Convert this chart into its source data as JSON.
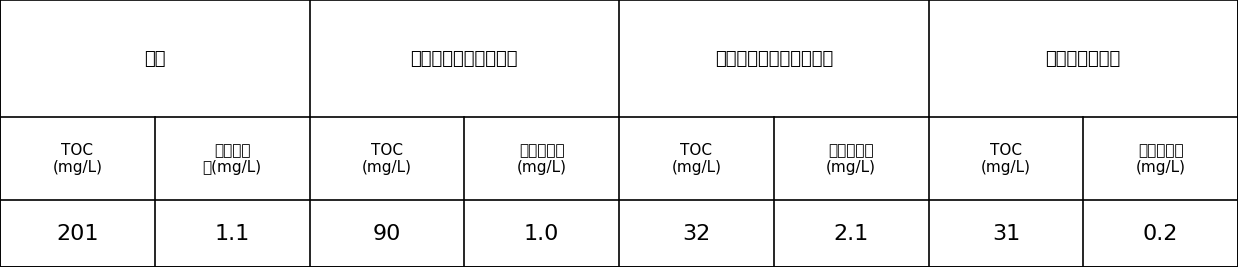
{
  "header_row1": [
    "原料",
    "通过微晶过滤子系统后",
    "通过活性炭过滤子系统后",
    "超滤器子系统后"
  ],
  "header_row1_spans": [
    2,
    2,
    2,
    2
  ],
  "header_row2_col1": "TOC\n(mg/L)",
  "header_row2_col2": "固体悬浮\n物(mg/L)",
  "header_row2_col3": "TOC\n(mg/L)",
  "header_row2_col4": "固体悬浮物\n(mg/L)",
  "header_row2_col5": "TOC\n(mg/L)",
  "header_row2_col6": "固体悬浮物\n(mg/L)",
  "header_row2_col7": "TOC\n(mg/L)",
  "header_row2_col8": "固体悬浮物\n(mg/L)",
  "header_row2": [
    "TOC\n(mg/L)",
    "固体悬浮\n物(mg/L)",
    "TOC\n(mg/L)",
    "固体悬浮物\n(mg/L)",
    "TOC\n(mg/L)",
    "固体悬浮物\n(mg/L)",
    "TOC\n(mg/L)",
    "固体悬浮物\n(mg/L)"
  ],
  "data_row": [
    "201",
    "1.1",
    "90",
    "1.0",
    "32",
    "2.1",
    "31",
    "0.2"
  ],
  "background_color": "#ffffff",
  "border_color": "#000000",
  "text_color": "#000000",
  "font_size_header1": 13,
  "font_size_header2": 11,
  "font_size_data": 16,
  "row_tops": [
    1.0,
    0.56,
    0.25,
    0.0
  ]
}
